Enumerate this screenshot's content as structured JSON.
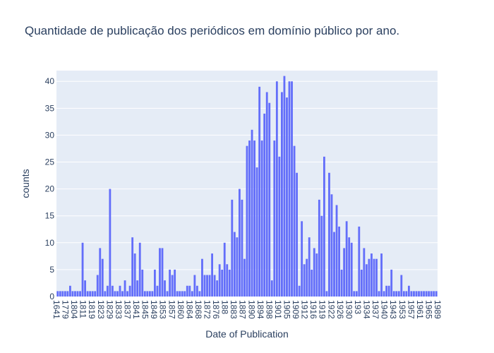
{
  "chart_data": {
    "type": "bar",
    "title": "Quantidade de publicação dos periódicos em domínio público por ano.",
    "xlabel": "Date of Publication",
    "ylabel": "counts",
    "ylim": [
      0,
      42
    ],
    "yticks": [
      0,
      5,
      10,
      15,
      20,
      25,
      30,
      35,
      40
    ],
    "grid": true,
    "colors": {
      "bar": "#636efa",
      "plot_bg": "#e5ecf6",
      "grid": "#ffffff",
      "text": "#2a3f5f"
    },
    "tick_labels": [
      "1641",
      "1779",
      "1804",
      "1811",
      "1819",
      "1823",
      "1829",
      "1833",
      "1837",
      "1841",
      "1845",
      "1849",
      "1853",
      "1857",
      "1860",
      "1864",
      "1868",
      "1872",
      "1876",
      "188",
      "1883",
      "1887",
      "1890",
      "1894",
      "1898",
      "1901",
      "1905",
      "1909",
      "1912",
      "1916",
      "1919",
      "1922",
      "1926",
      "1930",
      "193",
      "1934",
      "1937",
      "1940",
      "1943",
      "1953",
      "1957",
      "1961",
      "1965",
      "1989"
    ],
    "values": [
      1,
      1,
      1,
      1,
      1,
      2,
      1,
      1,
      1,
      1,
      10,
      3,
      1,
      1,
      1,
      1,
      4,
      9,
      7,
      1,
      2,
      20,
      2,
      1,
      1,
      2,
      1,
      3,
      1,
      2,
      11,
      8,
      3,
      10,
      5,
      1,
      1,
      1,
      1,
      5,
      2,
      9,
      9,
      3,
      1,
      5,
      4,
      5,
      1,
      1,
      1,
      1,
      2,
      2,
      1,
      4,
      2,
      1,
      7,
      4,
      4,
      4,
      8,
      4,
      3,
      6,
      5,
      10,
      6,
      5,
      18,
      12,
      11,
      20,
      18,
      7,
      28,
      29,
      31,
      29,
      24,
      39,
      29,
      34,
      38,
      36,
      3,
      29,
      40,
      26,
      38,
      41,
      37,
      40,
      40,
      28,
      23,
      2,
      14,
      6,
      7,
      11,
      5,
      9,
      8,
      18,
      15,
      26,
      1,
      23,
      19,
      12,
      17,
      13,
      5,
      9,
      14,
      11,
      10,
      1,
      1,
      13,
      5,
      9,
      6,
      7,
      8,
      7,
      7,
      1,
      8,
      1,
      2,
      2,
      5,
      1,
      1,
      1,
      4,
      1,
      1,
      2,
      1,
      1,
      1,
      1,
      1,
      1,
      1,
      1,
      1,
      1,
      1
    ]
  }
}
